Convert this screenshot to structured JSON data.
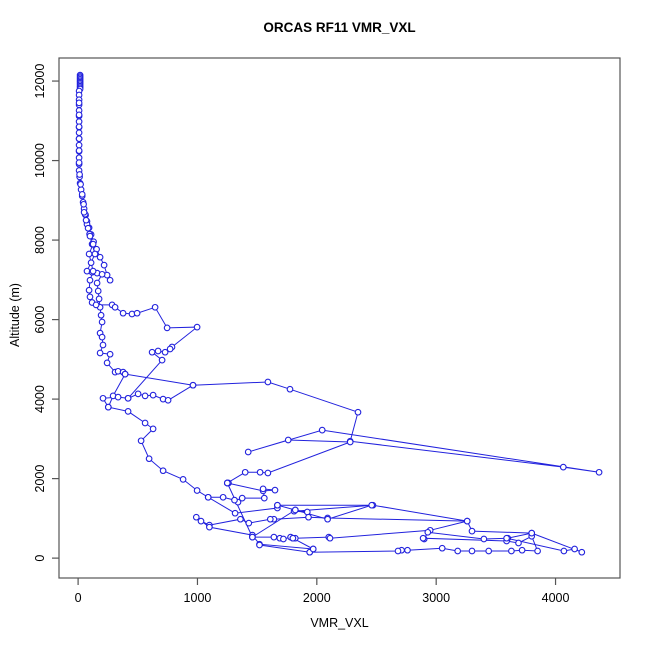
{
  "chart_data": {
    "type": "line",
    "title": "ORCAS RF11 VMR_VXL",
    "xlabel": "VMR_VXL",
    "ylabel": "Altitude (m)",
    "x_ticks": [
      0,
      1000,
      2000,
      3000,
      4000
    ],
    "y_ticks": [
      0,
      2000,
      4000,
      6000,
      8000,
      10000,
      12000
    ],
    "x_range": [
      -160,
      4540
    ],
    "y_range": [
      -500,
      12580
    ],
    "grid": false,
    "legend_position": "none",
    "marker": "open-circle",
    "color": "#2222DD",
    "series": [
      {
        "name": "profile-segment-1",
        "points": [
          [
            17,
            12150
          ],
          [
            17,
            12115
          ],
          [
            17,
            12080
          ],
          [
            17,
            12045
          ],
          [
            17,
            12010
          ],
          [
            17,
            11975
          ],
          [
            17,
            11940
          ],
          [
            17,
            11905
          ],
          [
            17,
            11870
          ],
          [
            17,
            11835
          ],
          [
            17,
            11800
          ],
          [
            8,
            11750
          ],
          [
            8,
            11650
          ],
          [
            8,
            11530
          ],
          [
            8,
            11400
          ],
          [
            8,
            11260
          ],
          [
            8,
            11120
          ],
          [
            8,
            10980
          ],
          [
            8,
            10840
          ],
          [
            8,
            10700
          ],
          [
            8,
            10550
          ],
          [
            8,
            10390
          ],
          [
            8,
            10230
          ],
          [
            8,
            10070
          ],
          [
            8,
            9910
          ],
          [
            8,
            9750
          ],
          [
            13,
            9590
          ],
          [
            17,
            9430
          ],
          [
            25,
            9270
          ],
          [
            34,
            9110
          ],
          [
            42,
            8950
          ],
          [
            50,
            8790
          ],
          [
            63,
            8630
          ],
          [
            75,
            8470
          ],
          [
            92,
            8310
          ],
          [
            109,
            8140
          ],
          [
            130,
            7960
          ],
          [
            155,
            7770
          ],
          [
            184,
            7570
          ],
          [
            218,
            7370
          ],
          [
            243,
            7120
          ],
          [
            268,
            6990
          ]
        ]
      },
      {
        "name": "profile-segment-2",
        "points": [
          [
            8,
            11450
          ],
          [
            8,
            11150
          ],
          [
            8,
            10850
          ],
          [
            8,
            10550
          ],
          [
            8,
            10250
          ],
          [
            8,
            9950
          ],
          [
            13,
            9650
          ],
          [
            21,
            9400
          ],
          [
            34,
            9150
          ],
          [
            46,
            8900
          ],
          [
            59,
            8650
          ],
          [
            75,
            8400
          ],
          [
            96,
            8150
          ],
          [
            117,
            7900
          ],
          [
            142,
            7650
          ],
          [
            75,
            7220
          ],
          [
            117,
            7190
          ],
          [
            159,
            7170
          ],
          [
            201,
            7140
          ],
          [
            159,
            6920
          ],
          [
            168,
            6720
          ],
          [
            176,
            6520
          ],
          [
            184,
            6310
          ],
          [
            193,
            6110
          ],
          [
            201,
            5940
          ],
          [
            184,
            5660
          ],
          [
            201,
            5560
          ],
          [
            209,
            5360
          ],
          [
            184,
            5160
          ],
          [
            268,
            5130
          ],
          [
            243,
            4910
          ],
          [
            310,
            4680
          ],
          [
            335,
            4700
          ],
          [
            377,
            4680
          ],
          [
            394,
            4630
          ],
          [
            293,
            4080
          ],
          [
            253,
            3800
          ],
          [
            209,
            4020
          ],
          [
            335,
            4050
          ],
          [
            419,
            4020
          ],
          [
            503,
            4130
          ],
          [
            561,
            4080
          ],
          [
            628,
            4100
          ],
          [
            712,
            4000
          ],
          [
            754,
            3970
          ],
          [
            963,
            4350
          ]
        ]
      },
      {
        "name": "profile-segment-3",
        "points": [
          [
            50,
            8700
          ],
          [
            67,
            8500
          ],
          [
            84,
            8300
          ],
          [
            100,
            8100
          ],
          [
            126,
            7900
          ],
          [
            92,
            7650
          ],
          [
            109,
            7430
          ],
          [
            126,
            7220
          ],
          [
            100,
            6990
          ],
          [
            92,
            6740
          ],
          [
            100,
            6570
          ],
          [
            117,
            6430
          ],
          [
            151,
            6370
          ],
          [
            285,
            6370
          ],
          [
            310,
            6310
          ],
          [
            377,
            6160
          ],
          [
            452,
            6140
          ],
          [
            494,
            6160
          ],
          [
            645,
            6310
          ],
          [
            746,
            5790
          ],
          [
            997,
            5810
          ],
          [
            787,
            5310
          ],
          [
            771,
            5260
          ],
          [
            729,
            5180
          ],
          [
            670,
            5210
          ],
          [
            620,
            5180
          ],
          [
            704,
            4980
          ],
          [
            419,
            4020
          ]
        ]
      },
      {
        "name": "profile-segment-4",
        "points": [
          [
            394,
            4630
          ],
          [
            963,
            4350
          ],
          [
            1590,
            4430
          ],
          [
            1775,
            4250
          ],
          [
            2345,
            3670
          ],
          [
            2280,
            2940
          ],
          [
            4065,
            2290
          ],
          [
            4365,
            2160
          ],
          [
            2045,
            3220
          ],
          [
            1425,
            2670
          ],
          [
            1760,
            2970
          ],
          [
            2280,
            2920
          ],
          [
            1590,
            2140
          ],
          [
            1525,
            2160
          ],
          [
            1400,
            2160
          ],
          [
            1250,
            1890
          ],
          [
            1260,
            1890
          ]
        ]
      },
      {
        "name": "profile-segment-5",
        "points": [
          [
            1250,
            1890
          ],
          [
            1550,
            1690
          ],
          [
            1650,
            1710
          ],
          [
            1550,
            1740
          ],
          [
            1560,
            1510
          ],
          [
            1375,
            1510
          ],
          [
            1340,
            1410
          ],
          [
            1310,
            1460
          ],
          [
            1215,
            1530
          ],
          [
            1090,
            1530
          ],
          [
            1315,
            1130
          ],
          [
            1670,
            1260
          ],
          [
            1670,
            1330
          ],
          [
            1820,
            1210
          ],
          [
            1920,
            1160
          ],
          [
            1810,
            1180
          ],
          [
            2470,
            1330
          ],
          [
            3260,
            930
          ],
          [
            2090,
            1010
          ],
          [
            1930,
            1030
          ],
          [
            1640,
            980
          ],
          [
            1610,
            980
          ],
          [
            1430,
            880
          ],
          [
            1360,
            980
          ],
          [
            1100,
            830
          ],
          [
            1030,
            930
          ],
          [
            990,
            1030
          ],
          [
            1100,
            780
          ],
          [
            1460,
            580
          ],
          [
            1520,
            350
          ],
          [
            1970,
            230
          ],
          [
            1940,
            150
          ],
          [
            1520,
            330
          ]
        ]
      },
      {
        "name": "profile-segment-6",
        "points": [
          [
            1460,
            530
          ],
          [
            1640,
            530
          ],
          [
            1690,
            500
          ],
          [
            1720,
            480
          ],
          [
            1780,
            530
          ],
          [
            1800,
            500
          ],
          [
            1820,
            500
          ],
          [
            2100,
            530
          ],
          [
            2110,
            500
          ],
          [
            2950,
            700
          ],
          [
            3260,
            930
          ],
          [
            3300,
            680
          ],
          [
            3800,
            630
          ],
          [
            3600,
            500
          ],
          [
            3400,
            480
          ],
          [
            2930,
            650
          ],
          [
            2900,
            480
          ],
          [
            2890,
            500
          ],
          [
            3590,
            430
          ],
          [
            3690,
            380
          ],
          [
            3800,
            550
          ],
          [
            3850,
            180
          ],
          [
            3720,
            200
          ],
          [
            3630,
            180
          ],
          [
            3440,
            180
          ],
          [
            3300,
            180
          ],
          [
            3180,
            180
          ],
          [
            3050,
            250
          ],
          [
            2760,
            200
          ],
          [
            2710,
            200
          ],
          [
            2680,
            180
          ],
          [
            1940,
            150
          ],
          [
            1970,
            230
          ],
          [
            1800,
            500
          ]
        ]
      },
      {
        "name": "profile-segment-7",
        "points": [
          [
            3590,
            500
          ],
          [
            4070,
            180
          ],
          [
            4160,
            230
          ],
          [
            4220,
            150
          ],
          [
            3800,
            630
          ]
        ]
      },
      {
        "name": "profile-segment-8",
        "points": [
          [
            1670,
            1330
          ],
          [
            2460,
            1330
          ],
          [
            2090,
            980
          ],
          [
            1820,
            1210
          ],
          [
            1460,
            530
          ],
          [
            1250,
            1890
          ]
        ]
      },
      {
        "name": "profile-segment-9",
        "points": [
          [
            253,
            3800
          ],
          [
            419,
            3690
          ],
          [
            561,
            3400
          ],
          [
            628,
            3250
          ],
          [
            528,
            2950
          ],
          [
            595,
            2500
          ],
          [
            712,
            2200
          ],
          [
            880,
            1980
          ],
          [
            997,
            1700
          ],
          [
            1090,
            1530
          ]
        ]
      }
    ]
  }
}
